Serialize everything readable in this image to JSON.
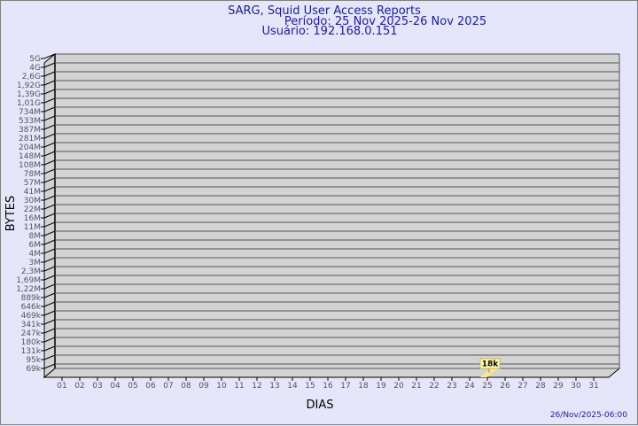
{
  "chart_data": {
    "type": "bar",
    "title": [
      "SARG, Squid User Access Reports",
      "Período: 25 Nov 2025-26 Nov 2025",
      "Usuário: 192.168.0.151"
    ],
    "xlabel": "DIAS",
    "ylabel": "BYTES",
    "y_ticks": [
      "5G",
      "4G",
      "2,6G",
      "1,92G",
      "1,39G",
      "1,01G",
      "734M",
      "533M",
      "387M",
      "281M",
      "204M",
      "148M",
      "108M",
      "78M",
      "57M",
      "41M",
      "30M",
      "22M",
      "16M",
      "11M",
      "8M",
      "6M",
      "4M",
      "3M",
      "2,3M",
      "1,69M",
      "1,22M",
      "889k",
      "646k",
      "469k",
      "341k",
      "247k",
      "180k",
      "131k",
      "95k",
      "69k"
    ],
    "categories": [
      "01",
      "02",
      "03",
      "04",
      "05",
      "06",
      "07",
      "08",
      "09",
      "10",
      "11",
      "12",
      "13",
      "14",
      "15",
      "16",
      "17",
      "18",
      "19",
      "20",
      "21",
      "22",
      "23",
      "24",
      "25",
      "26",
      "27",
      "28",
      "29",
      "30",
      "31"
    ],
    "values": [
      null,
      null,
      null,
      null,
      null,
      null,
      null,
      null,
      null,
      null,
      null,
      null,
      null,
      null,
      null,
      null,
      null,
      null,
      null,
      null,
      null,
      null,
      null,
      null,
      18000,
      null,
      null,
      null,
      null,
      null,
      null
    ],
    "data_labels": {
      "25": "18k"
    },
    "y_scale": "log",
    "grid": true,
    "bar_color": "#ffe88a",
    "plot_bg": "#d3d3d3"
  },
  "footer": {
    "timestamp": "26/Nov/2025-06:00"
  }
}
